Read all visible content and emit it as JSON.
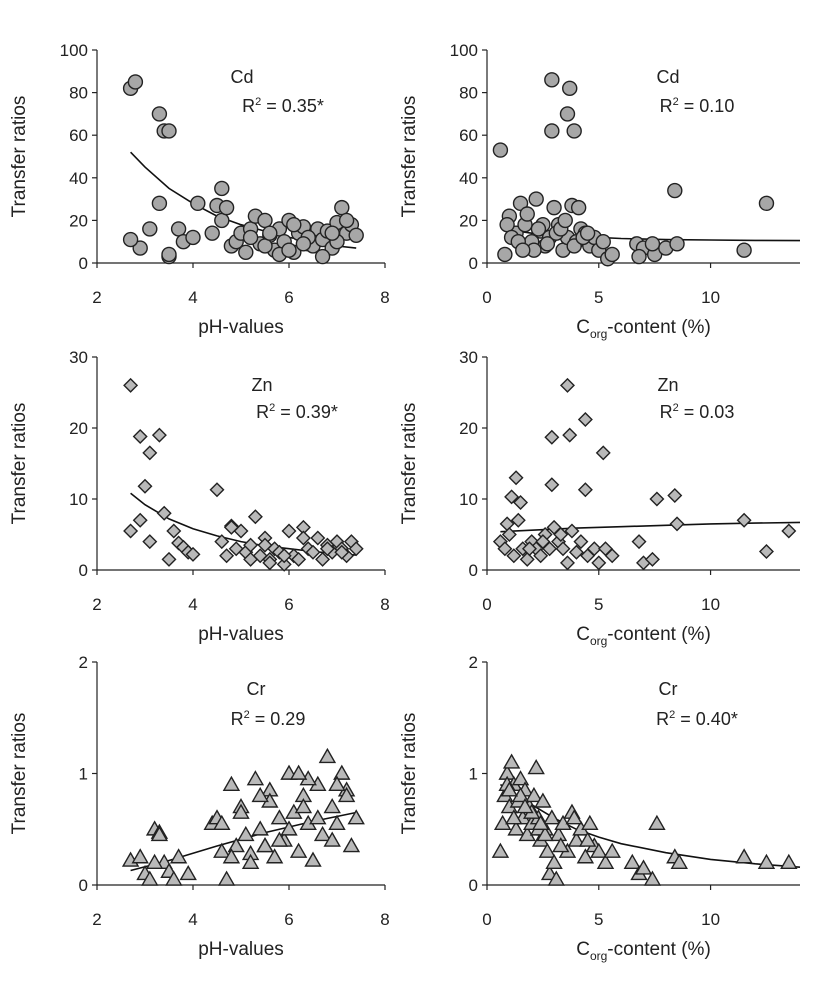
{
  "chart_data": [
    {
      "type": "scatter",
      "element": "Cd",
      "r2_text": "R² = 0.35*",
      "xlabel": "pH-values",
      "ylabel": "Transfer ratios",
      "xlim": [
        2,
        8
      ],
      "ylim": [
        0,
        100
      ],
      "xticks": [
        "2",
        "4",
        "6",
        "8"
      ],
      "yticks": [
        "0",
        "20",
        "40",
        "60",
        "80",
        "100"
      ],
      "marker": "circle",
      "series": [
        {
          "x": [
            2.7,
            2.8,
            2.9,
            3.1,
            3.3,
            3.4,
            3.5,
            3.3,
            3.5,
            3.7,
            3.8,
            3.5,
            2.7,
            4.1,
            4.0,
            4.4,
            4.5,
            4.6,
            4.7,
            4.6,
            4.8,
            4.9,
            5.0,
            5.1,
            5.2,
            5.3,
            5.4,
            5.5,
            5.6,
            5.7,
            5.8,
            5.9,
            6.0,
            6.1,
            6.2,
            6.3,
            6.4,
            6.5,
            6.6,
            6.7,
            6.8,
            6.9,
            7.0,
            7.1,
            7.2,
            7.3,
            7.4,
            5.2,
            5.5,
            5.8,
            6.1,
            6.4,
            6.7,
            7.0,
            5.6,
            6.0,
            6.3,
            6.9,
            7.2
          ],
          "y": [
            82,
            85,
            7,
            16,
            70,
            62,
            62,
            28,
            3,
            16,
            10,
            4,
            11,
            28,
            12,
            14,
            27,
            20,
            26,
            35,
            8,
            10,
            14,
            5,
            16,
            22,
            9,
            20,
            13,
            6,
            16,
            10,
            20,
            5,
            14,
            17,
            9,
            8,
            16,
            11,
            15,
            7,
            19,
            26,
            14,
            18,
            13,
            12,
            8,
            4,
            18,
            12,
            3,
            10,
            14,
            6,
            9,
            14,
            20
          ],
          "marker": "circle"
        }
      ],
      "fit": {
        "x": [
          2.7,
          3.0,
          3.5,
          4.0,
          4.5,
          5.0,
          5.5,
          6.0,
          6.5,
          7.0,
          7.4
        ],
        "y": [
          52,
          45,
          35,
          28,
          22,
          18,
          15,
          12,
          10,
          8,
          7
        ]
      }
    },
    {
      "type": "scatter",
      "element": "Cd",
      "r2_text": "R² = 0.10",
      "xlabel": "Corg-content (%)",
      "ylabel": "Transfer ratios",
      "xlim": [
        0,
        14
      ],
      "ylim": [
        0,
        100
      ],
      "xticks": [
        "0",
        "5",
        "10"
      ],
      "yticks": [
        "0",
        "20",
        "40",
        "60",
        "80",
        "100"
      ],
      "marker": "circle",
      "series": [
        {
          "x": [
            0.6,
            2.9,
            3.7,
            3.6,
            2.9,
            3.9,
            0.8,
            1.0,
            1.3,
            1.5,
            1.7,
            2.0,
            2.2,
            2.4,
            2.6,
            2.8,
            3.0,
            3.2,
            3.4,
            3.6,
            3.8,
            4.0,
            4.2,
            4.4,
            4.6,
            4.8,
            5.0,
            5.2,
            5.4,
            6.7,
            7.0,
            7.5,
            8.0,
            8.4,
            8.5,
            11.5,
            12.5,
            0.9,
            1.1,
            1.4,
            1.8,
            2.1,
            2.5,
            2.7,
            3.1,
            3.3,
            3.5,
            3.9,
            4.3,
            1.6,
            2.3,
            4.1,
            4.5,
            5.6,
            6.8,
            7.4
          ],
          "y": [
            53,
            86,
            82,
            70,
            62,
            62,
            4,
            22,
            14,
            28,
            18,
            10,
            30,
            15,
            8,
            12,
            26,
            18,
            6,
            12,
            27,
            10,
            16,
            14,
            8,
            12,
            6,
            10,
            2,
            9,
            7,
            4,
            7,
            34,
            9,
            6,
            28,
            18,
            12,
            10,
            23,
            6,
            18,
            9,
            14,
            16,
            20,
            8,
            12,
            6,
            16,
            26,
            14,
            4,
            3,
            9
          ],
          "marker": "circle"
        }
      ],
      "fit": {
        "x": [
          0.6,
          1,
          2,
          3,
          4,
          5,
          6,
          8,
          10,
          12,
          14
        ],
        "y": [
          17,
          15.5,
          14,
          13,
          12.5,
          12,
          11.5,
          11,
          10.8,
          10.6,
          10.5
        ]
      }
    },
    {
      "type": "scatter",
      "element": "Zn",
      "r2_text": "R² = 0.39*",
      "xlabel": "pH-values",
      "ylabel": "Transfer ratios",
      "xlim": [
        2,
        8
      ],
      "ylim": [
        0,
        30
      ],
      "xticks": [
        "2",
        "4",
        "6",
        "8"
      ],
      "yticks": [
        "0",
        "10",
        "20",
        "30"
      ],
      "marker": "diamond",
      "series": [
        {
          "x": [
            2.7,
            2.7,
            2.9,
            2.9,
            3.0,
            3.1,
            3.1,
            3.3,
            3.4,
            3.5,
            3.6,
            3.7,
            3.8,
            3.9,
            4.0,
            4.5,
            4.6,
            4.7,
            4.8,
            4.9,
            5.0,
            5.1,
            5.2,
            5.3,
            5.4,
            5.5,
            5.6,
            5.7,
            5.8,
            5.9,
            6.0,
            6.1,
            6.2,
            6.3,
            6.4,
            6.5,
            6.6,
            6.7,
            6.8,
            6.9,
            7.0,
            7.1,
            7.2,
            7.3,
            7.4,
            5.2,
            5.5,
            5.9,
            6.3,
            6.8,
            7.1,
            4.8,
            5.6
          ],
          "y": [
            26,
            5.5,
            18.8,
            7,
            11.8,
            16.5,
            4,
            19,
            8,
            1.5,
            5.5,
            3.8,
            3.2,
            2.5,
            2.2,
            11.3,
            4,
            2,
            6.2,
            3,
            5.5,
            2.5,
            3.5,
            7.5,
            2,
            4.5,
            1.5,
            3,
            2.5,
            0.8,
            5.5,
            2,
            1.5,
            6,
            3,
            2.5,
            4.5,
            1.5,
            3.5,
            2.5,
            4,
            3,
            2,
            4,
            3,
            1.5,
            3.5,
            2,
            4.5,
            3,
            2.5,
            6,
            1
          ]
        }
      ],
      "fit": {
        "x": [
          2.7,
          3.0,
          3.5,
          4.0,
          4.5,
          5.0,
          5.5,
          6.0,
          6.5,
          7.0,
          7.4
        ],
        "y": [
          10.8,
          9.2,
          7.2,
          5.8,
          4.8,
          4.0,
          3.4,
          3.0,
          2.6,
          2.3,
          2.1
        ]
      }
    },
    {
      "type": "scatter",
      "element": "Zn",
      "r2_text": "R² = 0.03",
      "xlabel": "Corg-content (%)",
      "ylabel": "Transfer ratios",
      "xlim": [
        0,
        14
      ],
      "ylim": [
        0,
        30
      ],
      "xticks": [
        "0",
        "5",
        "10"
      ],
      "yticks": [
        "0",
        "10",
        "20",
        "30"
      ],
      "marker": "diamond",
      "series": [
        {
          "x": [
            3.6,
            4.4,
            3.7,
            2.9,
            5.2,
            4.4,
            2.9,
            1.3,
            1.1,
            0.9,
            1.5,
            0.6,
            0.8,
            1.0,
            1.2,
            1.4,
            1.6,
            1.8,
            2.0,
            2.2,
            2.4,
            2.6,
            2.8,
            3.0,
            3.2,
            3.4,
            3.6,
            3.8,
            4.0,
            4.2,
            4.5,
            4.8,
            5.0,
            5.3,
            5.6,
            6.8,
            7.0,
            7.4,
            7.6,
            8.4,
            8.5,
            11.5,
            12.5,
            13.5,
            3.3,
            2.5,
            1.9
          ],
          "y": [
            26,
            21.2,
            19,
            18.7,
            16.5,
            11.3,
            12,
            13,
            10.3,
            6.5,
            9.5,
            4,
            3,
            5,
            2,
            7,
            3,
            1.5,
            4,
            3,
            2,
            5,
            3,
            6,
            4,
            3,
            1,
            5.5,
            2.5,
            4,
            2,
            3,
            1,
            3,
            2,
            4,
            1,
            1.5,
            10,
            10.5,
            6.5,
            7,
            2.6,
            5.5,
            5,
            4,
            3
          ]
        }
      ],
      "fit": {
        "x": [
          0.6,
          2,
          4,
          6,
          8,
          10,
          12,
          14
        ],
        "y": [
          5.4,
          5.6,
          5.9,
          6.1,
          6.3,
          6.5,
          6.6,
          6.7
        ]
      }
    },
    {
      "type": "scatter",
      "element": "Cr",
      "r2_text": "R² = 0.29",
      "xlabel": "pH-values",
      "ylabel": "Transfer ratios",
      "xlim": [
        2,
        8
      ],
      "ylim": [
        0,
        2
      ],
      "xticks": [
        "2",
        "4",
        "6",
        "8"
      ],
      "yticks": [
        "0",
        "1",
        "2"
      ],
      "marker": "triangle",
      "series": [
        {
          "x": [
            2.7,
            2.9,
            3.0,
            3.1,
            3.2,
            3.3,
            3.4,
            3.5,
            3.6,
            3.7,
            3.9,
            4.4,
            4.5,
            4.6,
            4.7,
            4.8,
            4.9,
            5.0,
            5.1,
            5.2,
            5.3,
            5.4,
            5.5,
            5.6,
            5.7,
            5.8,
            5.9,
            6.0,
            6.1,
            6.2,
            6.3,
            6.4,
            6.5,
            6.6,
            6.7,
            6.8,
            6.9,
            7.0,
            7.1,
            7.2,
            7.3,
            7.4,
            5.2,
            5.6,
            6.0,
            6.4,
            6.9,
            7.2,
            4.8,
            5.0,
            5.4,
            5.8,
            6.2,
            6.6,
            7.0,
            3.2,
            3.3,
            4.6,
            5.5,
            6.3
          ],
          "y": [
            0.22,
            0.25,
            0.1,
            0.05,
            0.5,
            0.47,
            0.2,
            0.12,
            0.05,
            0.25,
            0.1,
            0.55,
            0.6,
            0.3,
            0.05,
            0.9,
            0.35,
            0.7,
            0.45,
            0.28,
            0.95,
            0.5,
            0.35,
            0.85,
            0.25,
            0.6,
            0.4,
            1.0,
            0.65,
            0.3,
            0.8,
            0.55,
            0.22,
            0.9,
            0.45,
            1.15,
            0.7,
            0.55,
            1.0,
            0.85,
            0.35,
            0.6,
            0.2,
            0.75,
            0.5,
            0.95,
            0.4,
            0.8,
            0.25,
            0.65,
            0.8,
            0.4,
            1.0,
            0.6,
            0.9,
            0.2,
            0.45,
            0.55,
            0.35,
            0.7
          ]
        }
      ],
      "fit": {
        "x": [
          2.7,
          3.5,
          4.5,
          5.5,
          6.5,
          7.4
        ],
        "y": [
          0.13,
          0.22,
          0.35,
          0.47,
          0.57,
          0.65
        ]
      }
    },
    {
      "type": "scatter",
      "element": "Cr",
      "r2_text": "R² = 0.40*",
      "xlabel": "Corg-content (%)",
      "ylabel": "Transfer ratios",
      "xlim": [
        0,
        14
      ],
      "ylim": [
        0,
        2
      ],
      "xticks": [
        "0",
        "5",
        "10"
      ],
      "yticks": [
        "0",
        "1",
        "2"
      ],
      "marker": "triangle",
      "series": [
        {
          "x": [
            0.6,
            0.7,
            0.8,
            0.9,
            1.0,
            1.1,
            1.2,
            1.3,
            1.4,
            1.5,
            1.6,
            1.7,
            1.8,
            1.9,
            2.0,
            2.1,
            2.2,
            2.3,
            2.4,
            2.5,
            2.6,
            2.7,
            2.8,
            2.9,
            3.0,
            3.1,
            3.2,
            3.4,
            3.6,
            3.8,
            4.0,
            4.2,
            4.4,
            4.6,
            4.8,
            5.0,
            5.3,
            5.6,
            6.5,
            6.8,
            7.0,
            7.4,
            7.6,
            8.4,
            8.6,
            11.5,
            12.5,
            13.5,
            0.9,
            1.2,
            1.5,
            2.0,
            2.3,
            2.6,
            3.3,
            3.9,
            4.5,
            1.0,
            1.7,
            2.4
          ],
          "y": [
            0.3,
            0.55,
            0.8,
            1.0,
            0.7,
            1.1,
            0.9,
            0.5,
            0.75,
            0.95,
            0.6,
            0.85,
            0.45,
            0.7,
            0.55,
            0.8,
            1.05,
            0.6,
            0.4,
            0.75,
            0.5,
            0.3,
            0.1,
            0.6,
            0.2,
            0.05,
            0.45,
            0.55,
            0.3,
            0.65,
            0.4,
            0.5,
            0.25,
            0.55,
            0.35,
            0.3,
            0.2,
            0.3,
            0.2,
            0.1,
            0.15,
            0.05,
            0.55,
            0.25,
            0.2,
            0.25,
            0.2,
            0.2,
            0.9,
            0.6,
            0.8,
            0.65,
            0.5,
            0.45,
            0.35,
            0.6,
            0.4,
            0.85,
            0.7,
            0.55
          ]
        }
      ],
      "fit": {
        "x": [
          0.6,
          1,
          2,
          3,
          4,
          5,
          6,
          8,
          10,
          12,
          14
        ],
        "y": [
          0.9,
          0.85,
          0.72,
          0.6,
          0.5,
          0.43,
          0.37,
          0.29,
          0.23,
          0.19,
          0.16
        ]
      }
    }
  ]
}
